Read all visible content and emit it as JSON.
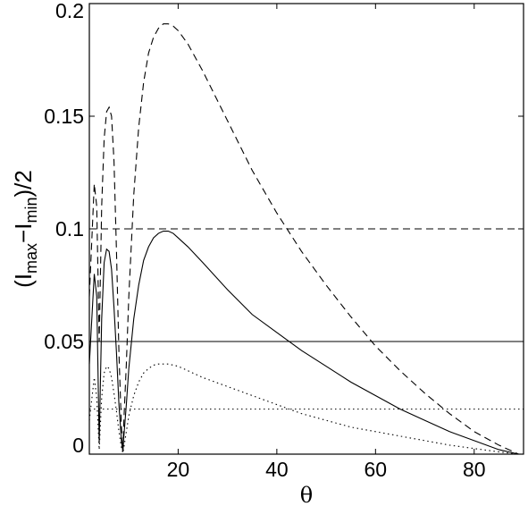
{
  "chart_data": {
    "type": "line",
    "xlabel": "θ",
    "ylabel": {
      "open": "(I",
      "sub1": "max",
      "minus": "−I",
      "sub2": "min",
      "close": ")/2"
    },
    "xlim": [
      2,
      90
    ],
    "ylim": [
      0,
      0.2
    ],
    "xticks": [
      20,
      40,
      60,
      80
    ],
    "yticks": [
      0,
      0.05,
      0.1,
      0.15,
      0.2
    ],
    "ytick_labels": [
      "0",
      "0.05",
      "0.1",
      "0.15",
      "0.2"
    ],
    "xtick_labels": [
      "20",
      "40",
      "60",
      "80"
    ],
    "grid": false,
    "series": [
      {
        "style": "dashed",
        "x": [
          2,
          3,
          3.5,
          4,
          4.5,
          5,
          5.5,
          6,
          6.5,
          7,
          7.5,
          8,
          8.5,
          8.8,
          9,
          9.5,
          10,
          11,
          12,
          13,
          14,
          15,
          16,
          17,
          18,
          19,
          20,
          22,
          25,
          30,
          35,
          40,
          45,
          50,
          55,
          60,
          65,
          70,
          75,
          80,
          85,
          89
        ],
        "y": [
          0.07,
          0.12,
          0.11,
          0.05,
          0.11,
          0.14,
          0.152,
          0.154,
          0.15,
          0.13,
          0.09,
          0.045,
          0.012,
          0.002,
          0.015,
          0.04,
          0.07,
          0.115,
          0.145,
          0.165,
          0.178,
          0.185,
          0.189,
          0.191,
          0.191,
          0.19,
          0.188,
          0.182,
          0.17,
          0.148,
          0.126,
          0.107,
          0.09,
          0.075,
          0.061,
          0.048,
          0.037,
          0.027,
          0.018,
          0.01,
          0.004,
          0.0
        ]
      },
      {
        "style": "solid",
        "x": [
          2,
          3,
          3.5,
          4,
          4.5,
          5,
          5.5,
          6,
          6.5,
          7,
          7.5,
          8,
          8.5,
          8.8,
          9,
          9.5,
          10,
          11,
          12,
          13,
          14,
          15,
          16,
          17,
          18,
          19,
          20,
          22,
          25,
          30,
          35,
          40,
          45,
          50,
          55,
          60,
          65,
          70,
          75,
          80,
          85,
          89
        ],
        "y": [
          0.04,
          0.08,
          0.07,
          0.005,
          0.06,
          0.085,
          0.091,
          0.09,
          0.082,
          0.065,
          0.045,
          0.022,
          0.006,
          0.001,
          0.008,
          0.022,
          0.038,
          0.06,
          0.075,
          0.086,
          0.092,
          0.096,
          0.098,
          0.099,
          0.099,
          0.098,
          0.096,
          0.092,
          0.085,
          0.073,
          0.062,
          0.054,
          0.046,
          0.039,
          0.032,
          0.026,
          0.02,
          0.015,
          0.01,
          0.006,
          0.002,
          0.0
        ]
      },
      {
        "style": "dotted",
        "x": [
          2,
          3,
          3.5,
          4,
          4.5,
          5,
          5.5,
          6,
          6.5,
          7,
          7.5,
          8,
          8.5,
          8.8,
          9,
          9.5,
          10,
          11,
          12,
          13,
          14,
          15,
          16,
          17,
          18,
          19,
          20,
          22,
          25,
          30,
          35,
          40,
          45,
          50,
          55,
          60,
          65,
          70,
          75,
          80,
          85,
          89
        ],
        "y": [
          0.015,
          0.034,
          0.025,
          0.002,
          0.025,
          0.036,
          0.039,
          0.038,
          0.034,
          0.027,
          0.019,
          0.01,
          0.003,
          0.0005,
          0.003,
          0.01,
          0.017,
          0.026,
          0.032,
          0.036,
          0.038,
          0.0395,
          0.04,
          0.04,
          0.04,
          0.0395,
          0.039,
          0.037,
          0.034,
          0.03,
          0.026,
          0.022,
          0.018,
          0.015,
          0.012,
          0.01,
          0.008,
          0.006,
          0.004,
          0.0025,
          0.001,
          0.0
        ]
      }
    ],
    "hlines": [
      {
        "y": 0.1,
        "style": "dashed"
      },
      {
        "y": 0.05,
        "style": "solid"
      },
      {
        "y": 0.02,
        "style": "dotted"
      }
    ]
  }
}
